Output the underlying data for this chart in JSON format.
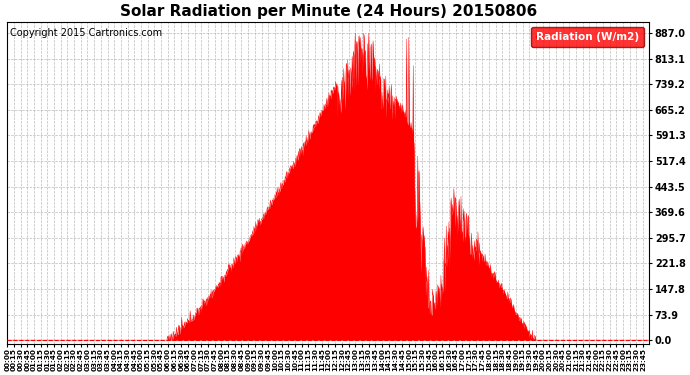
{
  "title": "Solar Radiation per Minute (24 Hours) 20150806",
  "copyright_text": "Copyright 2015 Cartronics.com",
  "legend_label": "Radiation (W/m2)",
  "y_ticks": [
    0.0,
    73.9,
    147.8,
    221.8,
    295.7,
    369.6,
    443.5,
    517.4,
    591.3,
    665.2,
    739.2,
    813.1,
    887.0
  ],
  "ylim_min": -10,
  "ylim_max": 920,
  "fill_color": "#FF0000",
  "line_color": "#FF0000",
  "background_color": "#FFFFFF",
  "grid_color": "#AAAAAA",
  "title_fontsize": 11,
  "axis_fontsize": 7,
  "legend_bg": "#FF0000",
  "legend_text_color": "#FFFFFF",
  "x_tick_interval_minutes": 15,
  "total_minutes": 1440,
  "copyright_fontsize": 7,
  "sunrise": 355,
  "sunset": 1185,
  "peak_minute": 795,
  "peak_value": 887.0
}
